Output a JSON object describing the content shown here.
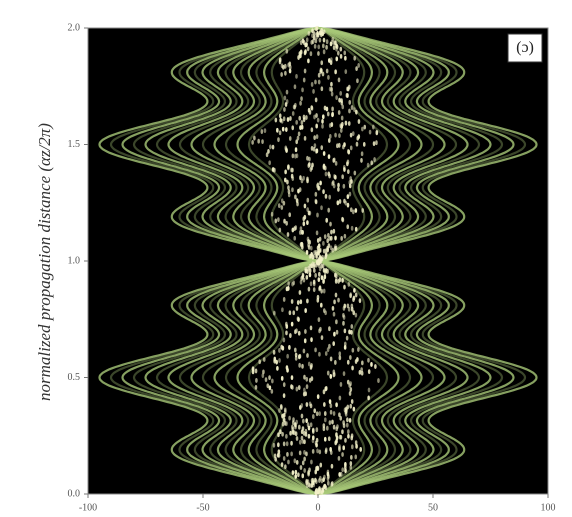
{
  "chart_data": {
    "type": "density",
    "ylabel": "normalized propagation distance (αz/2π)",
    "annotation": "(c)",
    "xlim": [
      -100,
      100
    ],
    "xticks": [
      -100,
      -50,
      0,
      50,
      100
    ],
    "ylim": [
      0,
      2
    ],
    "yticks": [
      {
        "value": 0,
        "label": "0.0"
      },
      {
        "value": 0.5,
        "label": "0.5"
      },
      {
        "value": 1,
        "label": "1.0"
      },
      {
        "value": 1.5,
        "label": "1.5"
      },
      {
        "value": 2,
        "label": "2.0"
      }
    ],
    "color": "#a8c878"
  }
}
